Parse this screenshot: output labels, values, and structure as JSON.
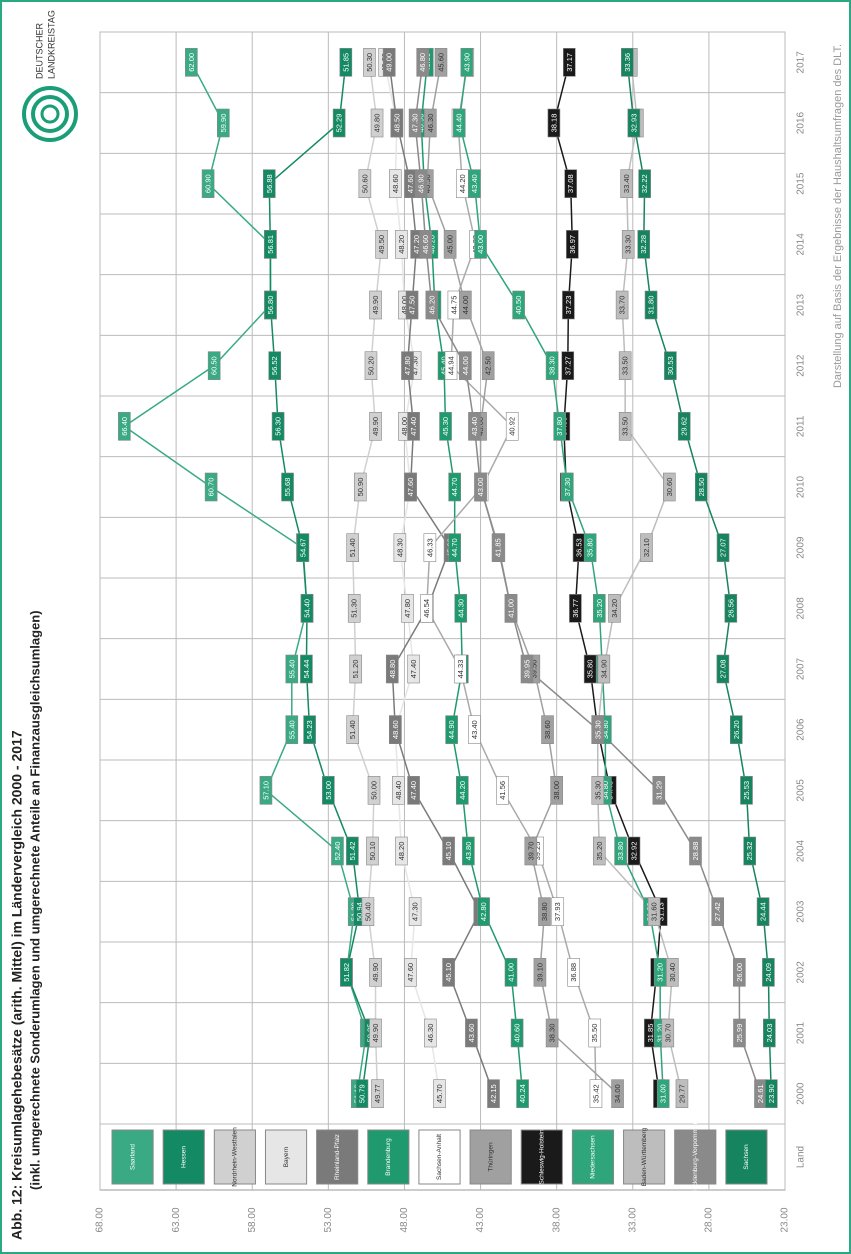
{
  "chart_data": {
    "type": "line",
    "title": "Abb. 12: Kreisumlagehebesätze (arith. Mittel) im Ländervergleich 2000 - 2017",
    "subtitle": "(inkl. umgerechnete Sonderumlagen und umgerechnete Anteile an Finanzausgleichsumlagen)",
    "legend_title": "Land",
    "source": "Darstellung auf Basis der Ergebnisse der Haushaltsumfragen des DLT.",
    "logo": [
      "DEUTSCHER",
      "LANDKREISTAG"
    ],
    "categories": [
      "2000",
      "2001",
      "2002",
      "2003",
      "2004",
      "2005",
      "2006",
      "2007",
      "2008",
      "2009",
      "2010",
      "2011",
      "2012",
      "2013",
      "2014",
      "2015",
      "2016",
      "2017"
    ],
    "ylim": [
      23,
      68
    ],
    "yticks": [
      {
        "value": 23,
        "label": "23.00"
      },
      {
        "value": 28,
        "label": "28.00"
      },
      {
        "value": 33,
        "label": "33.00"
      },
      {
        "value": 38,
        "label": "38.00"
      },
      {
        "value": 43,
        "label": "43.00"
      },
      {
        "value": 48,
        "label": "48.00"
      },
      {
        "value": 53,
        "label": "53.00"
      },
      {
        "value": 58,
        "label": "58.00"
      },
      {
        "value": 63,
        "label": "63.00"
      },
      {
        "value": 68,
        "label": "68.00"
      }
    ],
    "grid": true,
    "series": [
      {
        "name": "Saarland",
        "color": "#3aaa85",
        "values": [
          51.1,
          50.5,
          51.8,
          51.3,
          52.4,
          57.1,
          55.4,
          55.4,
          54.4,
          54.7,
          60.7,
          66.4,
          60.5,
          56.8,
          56.8,
          60.9,
          59.9,
          62.0
        ],
        "value_labels": [
          "51.10",
          "50.50",
          "51.80",
          "51.30",
          "52.40",
          "57.10",
          "55.40",
          "55.40",
          "54.40",
          "54.70",
          "60.70",
          "66.40",
          "60.50",
          "56.80",
          "56.80",
          "60.90",
          "59.90",
          "62.00"
        ]
      },
      {
        "name": "Hessen",
        "color": "#138a63",
        "values": [
          50.79,
          50.25,
          51.82,
          50.94,
          51.42,
          53.0,
          54.23,
          54.44,
          54.4,
          54.67,
          55.68,
          56.3,
          56.52,
          56.8,
          56.81,
          56.88,
          52.29,
          51.85
        ],
        "value_labels": [
          "50.79",
          "50.25",
          "51.82",
          "50.94",
          "51.42",
          "53.00",
          "54.23",
          "54.44",
          "54.40",
          "54.67",
          "55.68",
          "56.30",
          "56.52",
          "56.80",
          "56.81",
          "56.88",
          "52.29",
          "51.85"
        ]
      },
      {
        "name": "Nordrhein-Westfalen",
        "color": "#d0d0d0",
        "values": [
          49.77,
          49.9,
          49.9,
          50.4,
          50.1,
          50.0,
          51.4,
          51.2,
          51.3,
          51.4,
          50.9,
          49.9,
          50.2,
          49.9,
          49.5,
          50.6,
          49.8,
          50.3
        ],
        "value_labels": [
          "49.77",
          "49.90",
          "49.90",
          "50.40",
          "50.10",
          "50.00",
          "51.40",
          "51.20",
          "51.30",
          "51.40",
          "50.90",
          "49.90",
          "50.20",
          "49.90",
          "49.50",
          "50.60",
          "49.80",
          "50.30"
        ]
      },
      {
        "name": "Bayern",
        "color": "#e6e6e6",
        "values": [
          45.7,
          46.3,
          47.6,
          47.3,
          48.2,
          48.4,
          48.6,
          47.4,
          47.8,
          48.3,
          47.6,
          48.0,
          47.3,
          48.0,
          48.2,
          48.6,
          48.5,
          49.3
        ],
        "value_labels": [
          "45.70",
          "46.30",
          "47.60",
          "47.30",
          "48.20",
          "48.40",
          "48.60",
          "47.40",
          "47.80",
          "48.30",
          "47.60",
          "48.00",
          "47.30",
          "48.00",
          "48.20",
          "48.60",
          "48.50",
          "49.30"
        ]
      },
      {
        "name": "Rheinland-Pfalz",
        "color": "#7a7a7a",
        "values": [
          42.15,
          43.6,
          45.1,
          43.05,
          45.1,
          47.4,
          48.6,
          48.8,
          46.5,
          45.0,
          47.6,
          47.4,
          47.8,
          47.5,
          47.2,
          47.6,
          48.5,
          49.0
        ],
        "value_labels": [
          "42.15",
          "43.60",
          "45.10",
          "43.05",
          "45.10",
          "47.40",
          "48.60",
          "48.80",
          "46.50",
          "45.00",
          "47.60",
          "47.40",
          "47.80",
          "47.50",
          "47.20",
          "47.60",
          "48.50",
          "49.00"
        ]
      },
      {
        "name": "Brandenburg",
        "color": "#1f9a6e",
        "values": [
          40.24,
          40.6,
          41.0,
          42.8,
          43.8,
          44.2,
          44.9,
          44.2,
          44.3,
          44.7,
          44.7,
          45.3,
          45.4,
          46.0,
          46.2,
          46.7,
          46.9,
          46.5
        ],
        "value_labels": [
          "40.24",
          "40.60",
          "41.00",
          "42.80",
          "43.80",
          "44.20",
          "44.90",
          "44.20",
          "44.30",
          "44.70",
          "44.70",
          "45.30",
          "45.40",
          "46.00",
          "46.20",
          "46.70",
          "46.90",
          "46.50"
        ]
      },
      {
        "name": "Sachsen-Anhalt",
        "color": "#ffffff",
        "values": [
          35.42,
          35.5,
          36.88,
          37.93,
          39.25,
          41.56,
          43.4,
          44.33,
          46.54,
          46.33,
          42.9,
          40.92,
          44.94,
          44.75,
          43.32,
          44.2,
          44.48,
          43.84
        ],
        "value_labels": [
          "35.42",
          "35.50",
          "36.88",
          "37.93",
          "39.25",
          "41.56",
          "43.40",
          "44.33",
          "46.54",
          "46.33",
          "42.90",
          "40.92",
          "44.94",
          "44.75",
          "43.32",
          "44.20",
          "44.48",
          "43.84"
        ]
      },
      {
        "name": "Thüringen",
        "color": "#a0a0a0",
        "values": [
          34.0,
          38.3,
          39.1,
          38.8,
          39.7,
          38.0,
          38.6,
          39.5,
          41.0,
          41.8,
          43.0,
          43.0,
          42.5,
          44.0,
          45.0,
          46.5,
          46.3,
          45.6
        ],
        "value_labels": [
          "34.00",
          "38.30",
          "39.10",
          "38.80",
          "39.70",
          "38.00",
          "38.60",
          "39.50",
          "41.00",
          "41.80",
          "43.00",
          "43.00",
          "42.50",
          "44.00",
          "45.00",
          "46.50",
          "46.30",
          "45.60"
        ]
      },
      {
        "name": "Schleswig-Holstein",
        "color": "#1a1a1a",
        "values": [
          31.25,
          31.85,
          31.43,
          31.13,
          32.92,
          34.48,
          35.3,
          35.8,
          36.77,
          36.53,
          37.37,
          37.53,
          37.27,
          37.23,
          36.97,
          37.08,
          38.18,
          37.17
        ],
        "value_labels": [
          "31.25",
          "31.85",
          "31.43",
          "31.13",
          "32.92",
          "34.48",
          "35.30",
          "35.80",
          "36.77",
          "36.53",
          "37.37",
          "37.53",
          "37.27",
          "37.23",
          "36.97",
          "37.08",
          "38.18",
          "37.17"
        ]
      },
      {
        "name": "Niedersachsen",
        "color": "#2fa57c",
        "values": [
          31.0,
          31.2,
          31.2,
          31.9,
          33.8,
          34.8,
          34.8,
          35.0,
          35.2,
          35.8,
          37.3,
          37.8,
          38.3,
          40.5,
          43.0,
          43.4,
          44.4,
          43.9
        ],
        "value_labels": [
          "31.00",
          "31.20",
          "31.20",
          "31.90",
          "33.80",
          "34.80",
          "34.80",
          "35.00",
          "35.20",
          "35.80",
          "37.30",
          "37.80",
          "38.30",
          "40.50",
          "43.00",
          "43.40",
          "44.40",
          "43.90"
        ]
      },
      {
        "name": "Baden-Württemberg",
        "color": "#bdbdbd",
        "values": [
          29.77,
          30.7,
          30.4,
          31.6,
          35.2,
          35.3,
          35.3,
          34.9,
          34.2,
          32.1,
          30.6,
          33.5,
          33.5,
          33.7,
          33.3,
          33.4,
          32.7,
          33.1
        ],
        "value_labels": [
          "29.77",
          "30.70",
          "30.40",
          "31.60",
          "35.20",
          "35.30",
          "35.30",
          "34.90",
          "34.20",
          "32.10",
          "30.60",
          "33.50",
          "33.50",
          "33.70",
          "33.30",
          "33.40",
          "32.70",
          "33.10"
        ]
      },
      {
        "name": "Mecklenburg-Vorpommern",
        "color": "#8a8a8a",
        "values": [
          24.61,
          25.99,
          26.0,
          27.42,
          28.88,
          31.29,
          35.3,
          39.95,
          41.0,
          41.85,
          43.0,
          43.4,
          44.0,
          46.2,
          46.6,
          46.9,
          47.3,
          46.8
        ],
        "value_labels": [
          "24.61",
          "25.99",
          "26.00",
          "27.42",
          "28.88",
          "31.29",
          "35.30",
          "39.95",
          "41.00",
          "41.85",
          "43.00",
          "43.40",
          "44.00",
          "46.20",
          "46.60",
          "46.90",
          "47.30",
          "46.80"
        ]
      },
      {
        "name": "Sachsen",
        "color": "#16845e",
        "values": [
          23.9,
          24.03,
          24.09,
          24.44,
          25.32,
          25.53,
          26.2,
          27.08,
          26.56,
          27.07,
          28.5,
          29.62,
          30.53,
          31.8,
          32.28,
          32.22,
          32.93,
          33.36
        ],
        "value_labels": [
          "23.90",
          "24.03",
          "24.09",
          "24.44",
          "25.32",
          "25.53",
          "26.20",
          "27.08",
          "26.56",
          "27.07",
          "28.50",
          "29.62",
          "30.53",
          "31.80",
          "32.28",
          "32.22",
          "32.93",
          "33.36"
        ]
      }
    ]
  }
}
